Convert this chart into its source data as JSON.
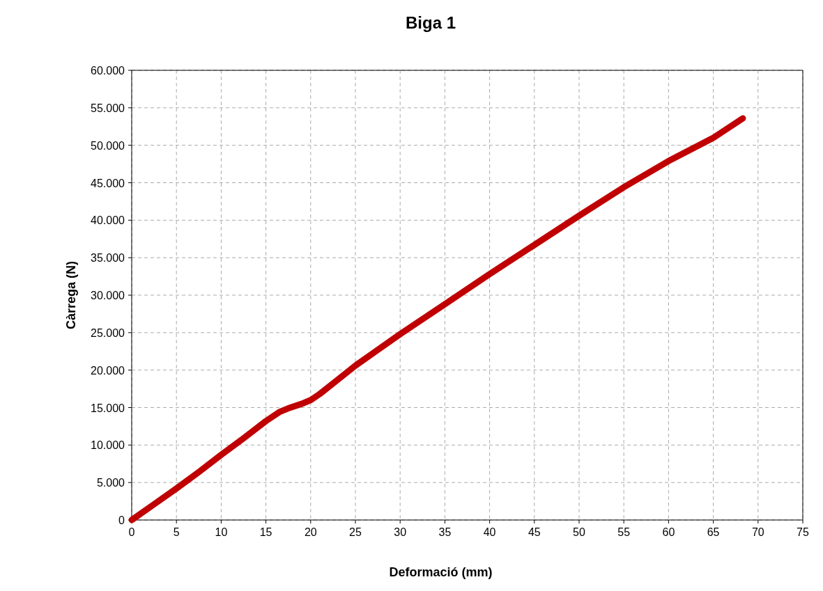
{
  "chart_data": {
    "type": "line",
    "title": "Biga 1",
    "xlabel": "Deformació (mm)",
    "ylabel": "Càrrega (N)",
    "xlim": [
      0,
      75
    ],
    "xticks": [
      0,
      5,
      10,
      15,
      20,
      25,
      30,
      35,
      40,
      45,
      50,
      55,
      60,
      65,
      70,
      75
    ],
    "ylim": [
      0,
      60000
    ],
    "yticks": [
      {
        "value": 0,
        "label": "0"
      },
      {
        "value": 5000,
        "label": "5.000"
      },
      {
        "value": 10000,
        "label": "10.000"
      },
      {
        "value": 15000,
        "label": "15.000"
      },
      {
        "value": 20000,
        "label": "20.000"
      },
      {
        "value": 25000,
        "label": "25.000"
      },
      {
        "value": 30000,
        "label": "30.000"
      },
      {
        "value": 35000,
        "label": "35.000"
      },
      {
        "value": 40000,
        "label": "40.000"
      },
      {
        "value": 45000,
        "label": "45.000"
      },
      {
        "value": 50000,
        "label": "50.000"
      },
      {
        "value": 55000,
        "label": "55.000"
      },
      {
        "value": 60000,
        "label": "60.000"
      }
    ],
    "grid": true,
    "marker": "none",
    "line_style": "solid",
    "series": [
      {
        "color": "#c00000",
        "x": [
          0,
          2.5,
          5,
          7.5,
          10,
          12.5,
          15,
          16.5,
          17.5,
          19,
          20,
          21,
          23,
          25,
          30,
          35,
          40,
          45,
          50,
          55,
          60,
          65,
          68.3
        ],
        "values": [
          0,
          2100,
          4200,
          6400,
          8700,
          10900,
          13200,
          14400,
          14900,
          15500,
          16000,
          16800,
          18700,
          20600,
          24800,
          28800,
          32800,
          36700,
          40600,
          44400,
          47900,
          51000,
          53600
        ]
      }
    ]
  }
}
